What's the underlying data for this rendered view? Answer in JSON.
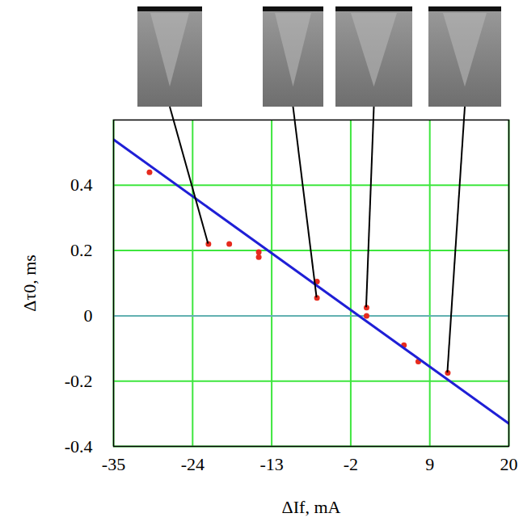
{
  "chart_data": {
    "type": "scatter",
    "x_label": "ΔIf, mA",
    "y_label": "Δτ0, ms",
    "xlim": [
      -35,
      20
    ],
    "xticks": [
      -35,
      -24,
      -13,
      -2,
      9,
      20
    ],
    "ylim": [
      -0.4,
      0.6
    ],
    "yticks": [
      -0.4,
      -0.2,
      0,
      0.2,
      0.4
    ],
    "grid": true,
    "series": [
      {
        "type": "scatter",
        "color": "#e62b1e",
        "marker": "circle",
        "x": [
          -30.0,
          -21.8,
          -18.9,
          -14.8,
          -14.8,
          -6.7,
          -6.7,
          0.2,
          0.2,
          5.4,
          7.4,
          11.5
        ],
        "values": [
          0.44,
          0.22,
          0.22,
          0.195,
          0.18,
          0.105,
          0.055,
          0.025,
          0.0,
          -0.09,
          -0.14,
          -0.175
        ]
      },
      {
        "type": "line",
        "color": "#1f1fd6",
        "line_style": "solid",
        "x": [
          -35,
          20
        ],
        "values": [
          0.54,
          -0.33
        ]
      }
    ]
  }
}
